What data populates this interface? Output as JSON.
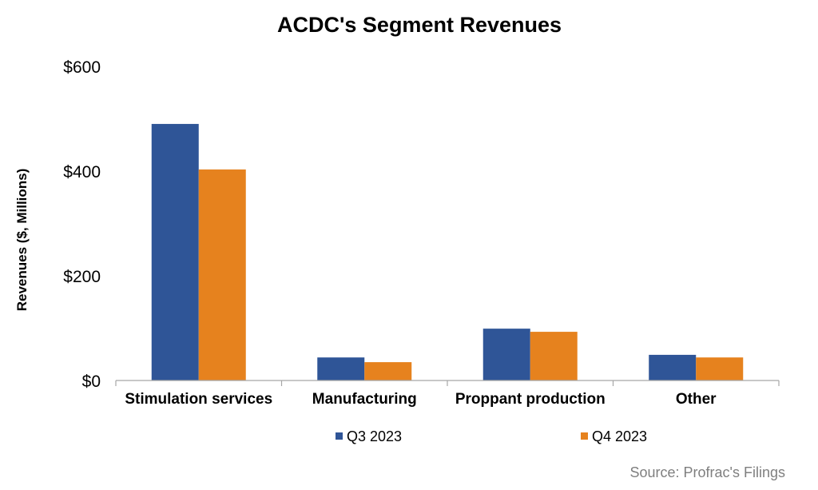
{
  "chart_data": {
    "type": "bar",
    "title": "ACDC's Segment Revenues",
    "ylabel": "Revenues ($, Millions)",
    "xlabel": "",
    "ylim": [
      0,
      600
    ],
    "ytick_values": [
      0,
      200,
      400,
      600
    ],
    "ytick_labels": [
      "$0",
      "$200",
      "$400",
      "$600"
    ],
    "categories": [
      "Stimulation services",
      "Manufacturing",
      "Proppant production",
      "Other"
    ],
    "series": [
      {
        "name": "Q3 2023",
        "color": "#2f5597",
        "values": [
          490,
          44,
          99,
          49
        ]
      },
      {
        "name": "Q4 2023",
        "color": "#e6821e",
        "values": [
          403,
          35,
          93,
          44
        ]
      }
    ],
    "legend_position": "bottom",
    "grid": false,
    "source": "Source: Profrac's Filings"
  }
}
